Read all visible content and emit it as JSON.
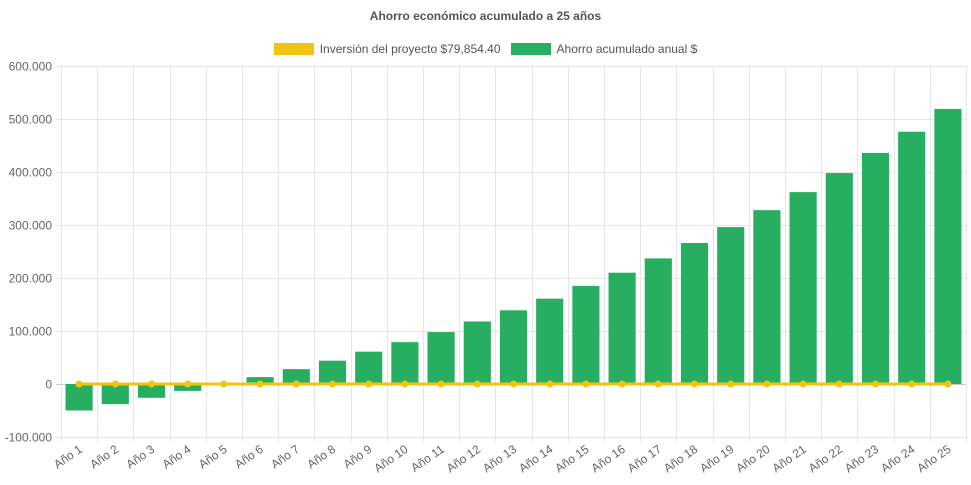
{
  "chart_data": {
    "type": "bar",
    "title": "Ahorro económico acumulado a 25 años",
    "categories": [
      "Año 1",
      "Año 2",
      "Año 3",
      "Año 4",
      "Año 5",
      "Año 6",
      "Año 7",
      "Año 8",
      "Año 9",
      "Año 10",
      "Año 11",
      "Año 12",
      "Año 13",
      "Año 14",
      "Año 15",
      "Año 16",
      "Año 17",
      "Año 18",
      "Año 19",
      "Año 20",
      "Año 21",
      "Año 22",
      "Año 23",
      "Año 24",
      "Año 25"
    ],
    "series": [
      {
        "name": "Inversión del proyecto $79,854.40",
        "type": "line",
        "color": "#f1c40f",
        "values": [
          0,
          0,
          0,
          0,
          0,
          0,
          0,
          0,
          0,
          0,
          0,
          0,
          0,
          0,
          0,
          0,
          0,
          0,
          0,
          0,
          0,
          0,
          0,
          0,
          0
        ]
      },
      {
        "name": "Ahorro acumulado anual $",
        "type": "bar",
        "color": "#27ae60",
        "values": [
          -50000,
          -38000,
          -26000,
          -13000,
          0,
          13000,
          28000,
          44000,
          61000,
          79000,
          98000,
          118000,
          139000,
          161000,
          185000,
          210000,
          237000,
          266000,
          296000,
          328000,
          362000,
          398000,
          436000,
          476000,
          519000
        ]
      }
    ],
    "ylim": [
      -100000,
      600000
    ],
    "yticks": [
      "600.000",
      "500.000",
      "400.000",
      "300.000",
      "200.000",
      "100.000",
      "0",
      "-100.000"
    ],
    "ytick_values": [
      600000,
      500000,
      400000,
      300000,
      200000,
      100000,
      0,
      -100000
    ],
    "grid": true,
    "legend_position": "top"
  }
}
